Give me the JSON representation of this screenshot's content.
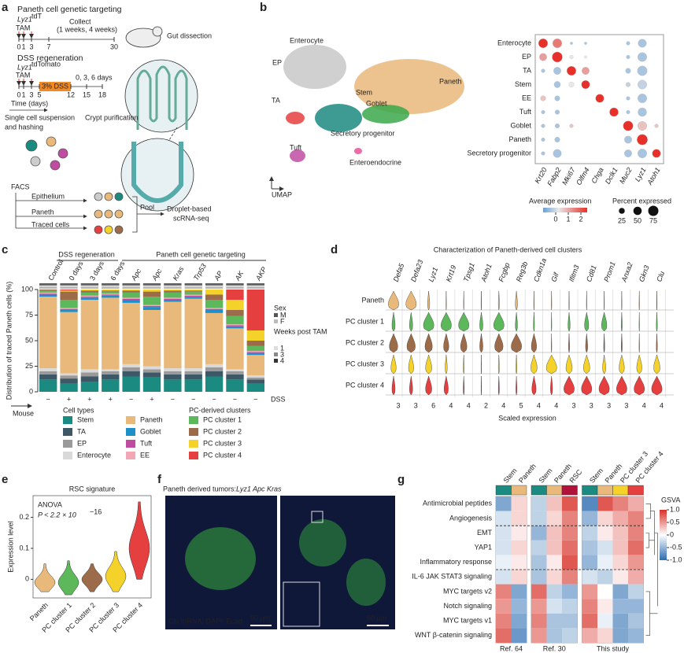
{
  "panel_labels": [
    "a",
    "b",
    "c",
    "d",
    "e",
    "f",
    "g"
  ],
  "a": {
    "targeting": "Paneth cell genetic targeting",
    "lyz": "Lyz1",
    "lyz_sup": "tdT",
    "tam": "TAM",
    "collect": "Collect",
    "weeks": "(1 weeks, 4 weeks)",
    "days1": [
      0,
      1,
      3,
      7,
      30
    ],
    "gut": "Gut dissection",
    "dss": "DSS regeneration",
    "lyz2": "Lyz1",
    "lyz2_sup": "tdTomato",
    "tam2": "TAM",
    "dss_pct": "3% DSS",
    "days036": "0, 3, 6 days",
    "days2": [
      0,
      1,
      3,
      5,
      12,
      15,
      18
    ],
    "time": "Time (days)",
    "crypt": "Crypt purification",
    "single": "Single cell suspension",
    "hashing": "and hashing",
    "facs": "FACS",
    "epi": "Epithelium",
    "paneth": "Paneth",
    "traced": "Traced cells",
    "pool": "Pool",
    "droplet": "Droplet-based",
    "scrna": "scRNA-seq"
  },
  "b": {
    "umap": "UMAP",
    "clusters": [
      "Enterocyte",
      "EP",
      "TA",
      "Stem",
      "Paneth",
      "Goblet",
      "Secretory progenitor",
      "Tuft",
      "Enteroendocrine"
    ],
    "rows": [
      "Enterocyte",
      "EP",
      "TA",
      "Stem",
      "EE",
      "Tuft",
      "Goblet",
      "Paneth",
      "Secretory progenitor"
    ],
    "genes": [
      "Krt20",
      "Fabp2",
      "Mki67",
      "Olfm4",
      "Chga",
      "Dclk1",
      "Muc2",
      "Lyz1",
      "Atoh1"
    ],
    "expression": [
      [
        2.5,
        1.5,
        -0.5,
        -0.5,
        0,
        0,
        -0.5,
        -0.5,
        0
      ],
      [
        1,
        2.5,
        0,
        0,
        0,
        0,
        -0.5,
        -0.5,
        0
      ],
      [
        -0.5,
        -0.5,
        2.5,
        1,
        0,
        0,
        -0.5,
        -0.5,
        0
      ],
      [
        0,
        -0.5,
        0,
        2.5,
        0,
        0,
        -0.3,
        -0.3,
        0
      ],
      [
        0.5,
        -0.5,
        0,
        0,
        2.5,
        0,
        -0.5,
        -0.5,
        0
      ],
      [
        -0.5,
        -0.5,
        0,
        0,
        0,
        2.5,
        -0.5,
        -0.5,
        0
      ],
      [
        -0.5,
        -0.5,
        0.5,
        0,
        0,
        0,
        2.5,
        0.5,
        0.5
      ],
      [
        -0.5,
        -0.5,
        0,
        0,
        0,
        0,
        -0.5,
        2.5,
        0
      ],
      [
        -0.5,
        -0.5,
        0,
        0,
        0,
        0,
        -0.5,
        -0.5,
        2.5
      ]
    ],
    "percent": [
      [
        60,
        60,
        5,
        5,
        0,
        0,
        10,
        50,
        0
      ],
      [
        40,
        75,
        10,
        5,
        0,
        0,
        10,
        60,
        0
      ],
      [
        10,
        40,
        60,
        40,
        0,
        0,
        20,
        70,
        0
      ],
      [
        0,
        30,
        20,
        50,
        0,
        0,
        15,
        60,
        0
      ],
      [
        20,
        20,
        0,
        0,
        50,
        0,
        10,
        60,
        0
      ],
      [
        10,
        15,
        0,
        0,
        0,
        55,
        10,
        55,
        0
      ],
      [
        10,
        15,
        10,
        0,
        0,
        0,
        70,
        60,
        10
      ],
      [
        10,
        20,
        0,
        0,
        0,
        0,
        40,
        80,
        0
      ],
      [
        10,
        50,
        0,
        0,
        0,
        0,
        40,
        60,
        50
      ]
    ],
    "avg_title": "Average expression",
    "avg_ticks": [
      0,
      1,
      2
    ],
    "pct_title": "Percent expressed",
    "pct_ticks": [
      25,
      50,
      75
    ]
  },
  "c": {
    "type": "stacked-bar",
    "header_dss": "DSS regeneration",
    "header_pc": "Paneth cell genetic targeting",
    "ylabel": "Distribution of traced Paneth cells (%)",
    "ylim": [
      0,
      100
    ],
    "yticks": [
      0,
      25,
      50,
      75,
      100
    ],
    "mouse": "Mouse",
    "dss": "DSS",
    "groups": [
      {
        "name": "Control",
        "dss": "−",
        "values": [
          12,
          5,
          3,
          3,
          70,
          2,
          1,
          1,
          2,
          1,
          0,
          0
        ]
      },
      {
        "name": "0 days",
        "dss": "+",
        "values": [
          8,
          5,
          3,
          2,
          60,
          2,
          1,
          1,
          8,
          8,
          1,
          1
        ]
      },
      {
        "name": "3 days",
        "dss": "+",
        "values": [
          10,
          5,
          4,
          3,
          68,
          2,
          1,
          1,
          3,
          2,
          1,
          0
        ]
      },
      {
        "name": "6 days",
        "dss": "+",
        "values": [
          12,
          5,
          3,
          2,
          70,
          2,
          1,
          1,
          2,
          1,
          1,
          0
        ]
      },
      {
        "name": "Apc",
        "dss": "−",
        "values": [
          15,
          5,
          4,
          3,
          60,
          3,
          1,
          1,
          5,
          2,
          1,
          0
        ]
      },
      {
        "name": "Apc",
        "dss": "+",
        "values": [
          14,
          5,
          3,
          3,
          55,
          3,
          1,
          1,
          8,
          5,
          2,
          0
        ]
      },
      {
        "name": "Kras",
        "dss": "−",
        "values": [
          12,
          5,
          3,
          3,
          65,
          2,
          1,
          1,
          5,
          2,
          1,
          0
        ]
      },
      {
        "name": "Trp53",
        "dss": "−",
        "values": [
          12,
          5,
          3,
          3,
          68,
          2,
          1,
          1,
          3,
          1,
          1,
          0
        ]
      },
      {
        "name": "AP",
        "dss": "−",
        "values": [
          15,
          5,
          4,
          3,
          50,
          3,
          1,
          1,
          8,
          5,
          5,
          0
        ]
      },
      {
        "name": "AK",
        "dss": "−",
        "values": [
          12,
          5,
          3,
          2,
          40,
          2,
          1,
          1,
          8,
          6,
          10,
          10
        ]
      },
      {
        "name": "AKP",
        "dss": "−",
        "values": [
          8,
          4,
          2,
          2,
          20,
          2,
          1,
          1,
          5,
          5,
          10,
          40
        ]
      }
    ],
    "cell_types_title": "Cell types",
    "pc_title": "PC-derived clusters",
    "cell_types": [
      {
        "name": "Stem",
        "color": "#1b8a80"
      },
      {
        "name": "TA",
        "color": "#3f5868"
      },
      {
        "name": "EP",
        "color": "#9a9a9a"
      },
      {
        "name": "Enterocyte",
        "color": "#d9d9d9"
      },
      {
        "name": "Paneth",
        "color": "#e9b97b"
      },
      {
        "name": "Goblet",
        "color": "#1f8fc9"
      },
      {
        "name": "Tuft",
        "color": "#c04ca2"
      },
      {
        "name": "EE",
        "color": "#f2a7b7"
      },
      {
        "name": "PC cluster 1",
        "color": "#5db85b"
      },
      {
        "name": "PC cluster 2",
        "color": "#9c6b4a"
      },
      {
        "name": "PC cluster 3",
        "color": "#f4d22a"
      },
      {
        "name": "PC cluster 4",
        "color": "#e63f3f"
      }
    ],
    "sex_title": "Sex",
    "sex": [
      {
        "name": "M",
        "color": "#555"
      },
      {
        "name": "F",
        "color": "#bbb"
      }
    ],
    "weeks_title": "Weeks post TAM",
    "weeks": [
      {
        "name": "1",
        "color": "#ddd"
      },
      {
        "name": "3",
        "color": "#888"
      },
      {
        "name": "4",
        "color": "#333"
      }
    ]
  },
  "d": {
    "title": "Characterization of Paneth-derived cell clusters",
    "xlabel": "Scaled expression",
    "genes": [
      "Defa5",
      "Defa23",
      "Lyz1",
      "Krt19",
      "Tpsg1",
      "Atoh1",
      "Fcgbp",
      "Reg3b",
      "Cdkn1a",
      "Gif",
      "Ifitm3",
      "Cd81",
      "Prom1",
      "Anxa2",
      "Gkn3",
      "Clu"
    ],
    "scale": [
      3,
      3,
      6,
      4,
      4,
      2,
      4,
      5,
      4,
      4,
      3,
      3,
      3,
      3,
      4,
      4
    ],
    "rows": [
      {
        "name": "Paneth",
        "color": "#e9b97b",
        "values": [
          1,
          1,
          0.2,
          0,
          0,
          0,
          0.1,
          0.2,
          0,
          0,
          0,
          0,
          0,
          0,
          0,
          0
        ]
      },
      {
        "name": "PC cluster 1",
        "color": "#5db85b",
        "values": [
          0.3,
          0.3,
          1,
          1,
          1,
          0.3,
          1,
          0.2,
          0.1,
          0,
          0.2,
          0.4,
          0.5,
          0.1,
          0,
          0.1
        ]
      },
      {
        "name": "PC cluster 2",
        "color": "#9c6b4a",
        "values": [
          0.8,
          0.8,
          0.7,
          0.5,
          0.6,
          0.3,
          0.8,
          1,
          0.5,
          0,
          0.1,
          0.2,
          0.1,
          0.1,
          0,
          0.1
        ]
      },
      {
        "name": "PC cluster 3",
        "color": "#f4d22a",
        "values": [
          0.5,
          0.5,
          0.6,
          0.2,
          0.1,
          0,
          0.1,
          0.1,
          0.6,
          1,
          0.6,
          0.6,
          0.3,
          0.5,
          0.5,
          0.6
        ]
      },
      {
        "name": "PC cluster 4",
        "color": "#e63f3f",
        "values": [
          0.3,
          0.3,
          0.6,
          0.4,
          0.1,
          0,
          0.1,
          0.1,
          0.4,
          0.2,
          1,
          1,
          1,
          1,
          1,
          1
        ]
      }
    ]
  },
  "e": {
    "type": "violin",
    "title": "RSC signature",
    "test": "ANOVA",
    "p": "P < 2.2 × 10",
    "p_exp": "−16",
    "ylabel": "Expression level",
    "ylim": [
      -0.06,
      0.27
    ],
    "yticks": [
      0,
      0.1,
      0.2
    ],
    "violins": [
      {
        "name": "Paneth",
        "color": "#e9b97b",
        "min": -0.04,
        "median": -0.01,
        "max": 0.05
      },
      {
        "name": "PC cluster 1",
        "color": "#5db85b",
        "min": -0.05,
        "median": -0.01,
        "max": 0.06
      },
      {
        "name": "PC cluster 2",
        "color": "#9c6b4a",
        "min": -0.04,
        "median": 0,
        "max": 0.05
      },
      {
        "name": "PC cluster 3",
        "color": "#f4d22a",
        "min": -0.04,
        "median": 0.01,
        "max": 0.09
      },
      {
        "name": "PC cluster 4",
        "color": "#e63f3f",
        "min": 0,
        "median": 0.1,
        "max": 0.25
      }
    ]
  },
  "f": {
    "title": "Paneth derived tumors: ",
    "title_genes": "Lyz1 Apc Kras",
    "stain": "Clu mRNA; DAPI; Ecad",
    "scale_left": "50 µm",
    "scale_right": "50 µm"
  },
  "g": {
    "type": "heatmap",
    "legend_title": "GSVA",
    "ticks": [
      {
        "value": 1,
        "label": "1.0"
      },
      0.5,
      0,
      -0.5,
      {
        "value": -1,
        "label": "-1.0"
      }
    ],
    "groups": [
      {
        "name": "Ref. 64",
        "columns": [
          {
            "name": "Stem",
            "color": "#1b8a80"
          },
          {
            "name": "Paneth",
            "color": "#e9b97b"
          }
        ]
      },
      {
        "name": "Ref. 30",
        "columns": [
          {
            "name": "Stem",
            "color": "#1b8a80"
          },
          {
            "name": "Paneth",
            "color": "#e9b97b"
          },
          {
            "name": "RSC",
            "color": "#b0123a"
          }
        ]
      },
      {
        "name": "This study",
        "columns": [
          {
            "name": "Stem",
            "color": "#1b8a80"
          },
          {
            "name": "Paneth",
            "color": "#e9b97b"
          },
          {
            "name": "PC cluster 3",
            "color": "#f4d22a"
          },
          {
            "name": "PC cluster 4",
            "color": "#e63f3f"
          }
        ]
      }
    ],
    "rows": [
      {
        "name": "Antimicrobial peptides",
        "values": [
          -0.6,
          0.2,
          -0.3,
          0.3,
          0.8,
          -0.8,
          0.8,
          0.6,
          0.4
        ]
      },
      {
        "name": "Angiogenesis",
        "values": [
          -0.2,
          0.2,
          -0.3,
          0.2,
          0.6,
          -0.5,
          0.2,
          0.4,
          0.6
        ]
      },
      {
        "name": "EMT",
        "values": [
          -0.2,
          0.1,
          -0.5,
          0.3,
          0.6,
          -0.3,
          0.1,
          0.3,
          0.6
        ]
      },
      {
        "name": "YAP1",
        "values": [
          -0.2,
          0.2,
          -0.3,
          0.3,
          0.7,
          -0.4,
          -0.2,
          0.3,
          0.7
        ]
      },
      {
        "name": "Inflammatory response",
        "values": [
          -0.1,
          0.1,
          -0.4,
          0.1,
          0.8,
          -0.5,
          -0.1,
          0.2,
          0.5
        ]
      },
      {
        "name": "IL-6 JAK STAT3 signaling",
        "values": [
          -0.2,
          0.2,
          -0.4,
          0.2,
          0.6,
          -0.2,
          -0.3,
          0.1,
          0.4
        ]
      },
      {
        "name": "MYC targets v2",
        "values": [
          0.6,
          -0.6,
          0.7,
          -0.3,
          -0.5,
          0.5,
          0,
          -0.6,
          -0.3
        ]
      },
      {
        "name": "Notch signaling",
        "values": [
          0.5,
          -0.5,
          0.5,
          -0.2,
          -0.3,
          0.6,
          0.1,
          -0.5,
          -0.5
        ]
      },
      {
        "name": "MYC targets v1",
        "values": [
          0.6,
          -0.6,
          0.6,
          -0.4,
          -0.4,
          0.7,
          -0.1,
          -0.6,
          -0.4
        ]
      },
      {
        "name": "WNT β-catenin signaling",
        "values": [
          0.7,
          -0.7,
          0.5,
          -0.4,
          -0.3,
          0.4,
          0.2,
          -0.6,
          -0.5
        ]
      }
    ]
  }
}
